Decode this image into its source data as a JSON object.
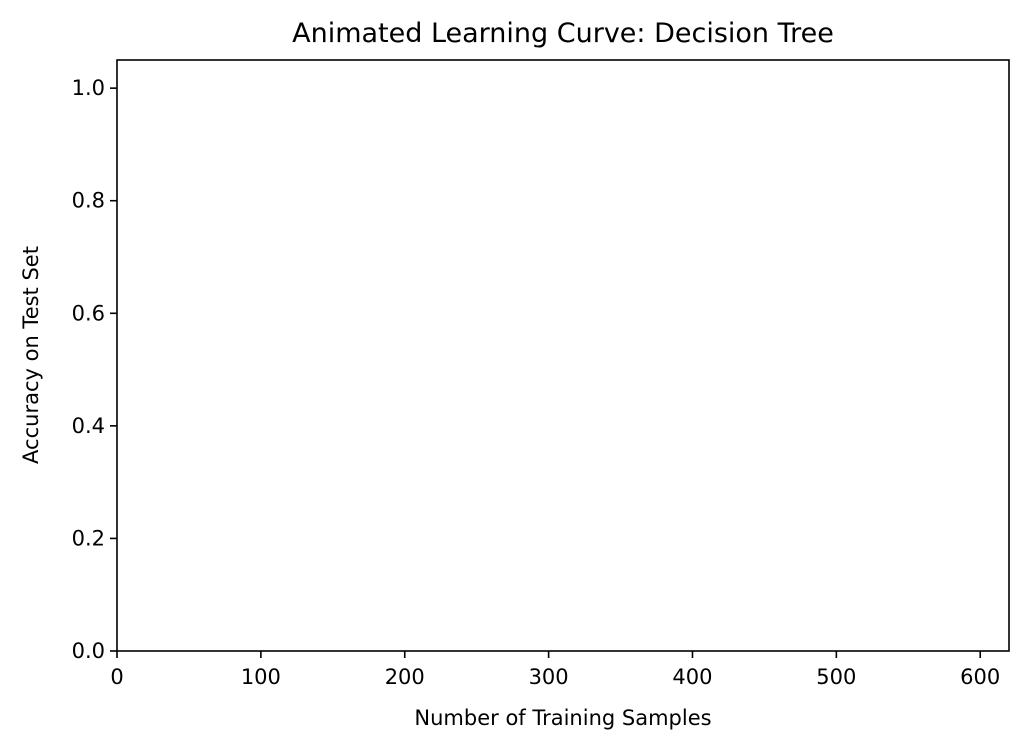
{
  "chart_data": {
    "type": "line",
    "title": "Animated Learning Curve: Decision Tree",
    "xlabel": "Number of Training Samples",
    "ylabel": "Accuracy on Test Set",
    "xlim": [
      0,
      620
    ],
    "ylim": [
      0,
      1.05
    ],
    "x_ticks": [
      0,
      100,
      200,
      300,
      400,
      500,
      600
    ],
    "x_tick_labels": [
      "0",
      "100",
      "200",
      "300",
      "400",
      "500",
      "600"
    ],
    "y_ticks": [
      0.0,
      0.2,
      0.4,
      0.6,
      0.8,
      1.0
    ],
    "y_tick_labels": [
      "0.0",
      "0.2",
      "0.4",
      "0.6",
      "0.8",
      "1.0"
    ],
    "grid": false,
    "series": []
  }
}
